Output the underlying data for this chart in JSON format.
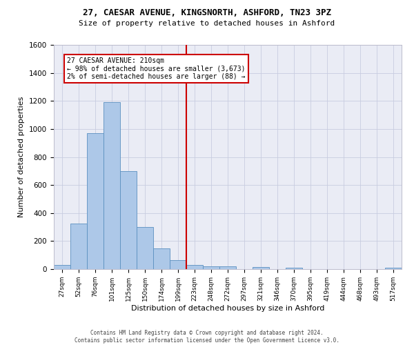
{
  "title1": "27, CAESAR AVENUE, KINGSNORTH, ASHFORD, TN23 3PZ",
  "title2": "Size of property relative to detached houses in Ashford",
  "xlabel": "Distribution of detached houses by size in Ashford",
  "ylabel": "Number of detached properties",
  "bar_labels": [
    "27sqm",
    "52sqm",
    "76sqm",
    "101sqm",
    "125sqm",
    "150sqm",
    "174sqm",
    "199sqm",
    "223sqm",
    "248sqm",
    "272sqm",
    "297sqm",
    "321sqm",
    "346sqm",
    "370sqm",
    "395sqm",
    "419sqm",
    "444sqm",
    "468sqm",
    "493sqm",
    "517sqm"
  ],
  "bar_values": [
    30,
    325,
    970,
    1190,
    700,
    300,
    150,
    65,
    30,
    20,
    20,
    0,
    15,
    0,
    10,
    0,
    0,
    0,
    0,
    0,
    10
  ],
  "bar_color": "#adc8e8",
  "bar_edge_color": "#5a90c0",
  "vline_bin_index": 8,
  "vline_color": "#cc0000",
  "annotation_title": "27 CAESAR AVENUE: 210sqm",
  "annotation_line1": "← 98% of detached houses are smaller (3,673)",
  "annotation_line2": "2% of semi-detached houses are larger (88) →",
  "annotation_box_edgecolor": "#cc0000",
  "annotation_bg": "#ffffff",
  "ylim_max": 1600,
  "yticks": [
    0,
    200,
    400,
    600,
    800,
    1000,
    1200,
    1400,
    1600
  ],
  "grid_color": "#c8cce0",
  "bg_color": "#eaecf5",
  "footer1": "Contains HM Land Registry data © Crown copyright and database right 2024.",
  "footer2": "Contains public sector information licensed under the Open Government Licence v3.0."
}
